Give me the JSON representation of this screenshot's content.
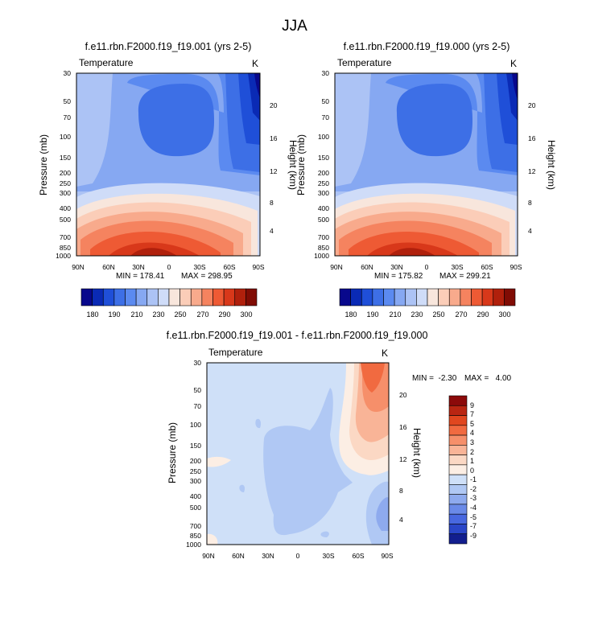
{
  "page_title": "JJA",
  "chart_data": [
    {
      "type": "heatmap",
      "panel": "model-a",
      "title": "f.e11.rbn.F2000.f19_f19.001 (yrs 2-5)",
      "field_label": "Temperature",
      "units": "K",
      "ylabel_left": "Pressure (mb)",
      "ylabel_right": "Height (km)",
      "x_ticks": [
        "90N",
        "60N",
        "30N",
        "0",
        "30S",
        "60S",
        "90S"
      ],
      "pressure_ticks": [
        "30",
        "50",
        "70",
        "100",
        "150",
        "200",
        "250",
        "300",
        "400",
        "500",
        "700",
        "850",
        "1000"
      ],
      "height_ticks": [
        "20",
        "16",
        "12",
        "8",
        "4"
      ],
      "min_label": "MIN = 178.41",
      "max_label": "MAX = 298.95",
      "min": 178.41,
      "max": 298.95,
      "colorbar_labels": [
        "180",
        "190",
        "210",
        "230",
        "250",
        "270",
        "290",
        "300"
      ]
    },
    {
      "type": "heatmap",
      "panel": "model-b",
      "title": "f.e11.rbn.F2000.f19_f19.000 (yrs 2-5)",
      "field_label": "Temperature",
      "units": "K",
      "ylabel_left": "Pressure (mb)",
      "ylabel_right": "Height (km)",
      "x_ticks": [
        "90N",
        "60N",
        "30N",
        "0",
        "30S",
        "60S",
        "90S"
      ],
      "pressure_ticks": [
        "30",
        "50",
        "70",
        "100",
        "150",
        "200",
        "250",
        "300",
        "400",
        "500",
        "700",
        "850",
        "1000"
      ],
      "height_ticks": [
        "20",
        "16",
        "12",
        "8",
        "4"
      ],
      "min_label": "MIN = 175.82",
      "max_label": "MAX = 299.21",
      "min": 175.82,
      "max": 299.21,
      "colorbar_labels": [
        "180",
        "190",
        "210",
        "230",
        "250",
        "270",
        "290",
        "300"
      ]
    },
    {
      "type": "heatmap",
      "panel": "difference",
      "title": "f.e11.rbn.F2000.f19_f19.001 - f.e11.rbn.F2000.f19_f19.000",
      "field_label": "Temperature",
      "units": "K",
      "ylabel_left": "Pressure (mb)",
      "ylabel_right": "Height (km)",
      "x_ticks": [
        "90N",
        "60N",
        "30N",
        "0",
        "30S",
        "60S",
        "90S"
      ],
      "pressure_ticks": [
        "30",
        "50",
        "70",
        "100",
        "150",
        "200",
        "250",
        "300",
        "400",
        "500",
        "700",
        "850",
        "1000"
      ],
      "height_ticks": [
        "20",
        "16",
        "12",
        "8",
        "4"
      ],
      "min_label": "MIN =  -2.30",
      "max_label": "MAX =   4.00",
      "min": -2.3,
      "max": 4.0,
      "colorbar_labels": [
        "9",
        "7",
        "5",
        "4",
        "3",
        "2",
        "1",
        "0",
        "-1",
        "-2",
        "-3",
        "-4",
        "-5",
        "-7",
        "-9"
      ]
    }
  ],
  "colors": {
    "temperature_scale": [
      "#08088c",
      "#0a2ab5",
      "#1f4fd8",
      "#3d6fe6",
      "#5b8af0",
      "#86a8f2",
      "#acc3f5",
      "#cfdcf8",
      "#f8e6dc",
      "#fbcdb8",
      "#f8aa8c",
      "#f5835f",
      "#ee5a34",
      "#d8381a",
      "#b0200c",
      "#800c04"
    ],
    "difference_scale": [
      "#8c0a0a",
      "#b92612",
      "#e0471f",
      "#f16a40",
      "#f68f6a",
      "#f9b497",
      "#fbd8c4",
      "#fceee4",
      "#cfe0f8",
      "#b0c8f4",
      "#8eaaee",
      "#6a8ae8",
      "#4868e0",
      "#2a46c8",
      "#121e8e"
    ]
  }
}
